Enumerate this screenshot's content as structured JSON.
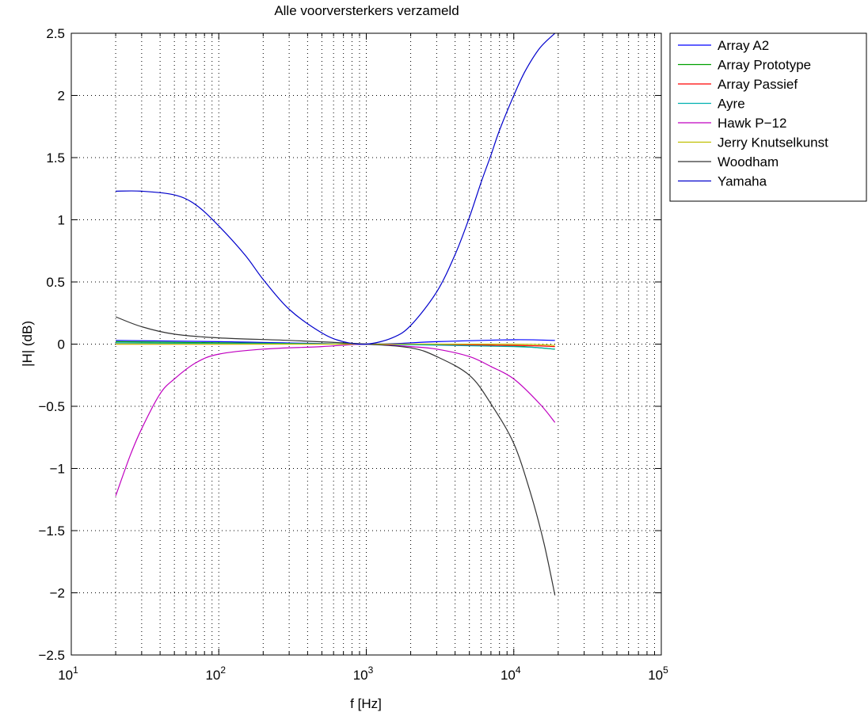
{
  "chart_data": {
    "type": "line",
    "title": "Alle voorversterkers verzameld",
    "xlabel": "f [Hz]",
    "ylabel": "|H| (dB)",
    "xscale": "log",
    "xlim": [
      10,
      100000
    ],
    "ylim": [
      -2.5,
      2.5
    ],
    "grid": true,
    "legend_position": "outside-right-top",
    "x_ticks": [
      {
        "base": "10",
        "exp": "1"
      },
      {
        "base": "10",
        "exp": "2"
      },
      {
        "base": "10",
        "exp": "3"
      },
      {
        "base": "10",
        "exp": "4"
      },
      {
        "base": "10",
        "exp": "5"
      }
    ],
    "y_ticks": [
      "2.5",
      "2",
      "1.5",
      "1",
      "0.5",
      "0",
      "−0.5",
      "−1",
      "−1.5",
      "−2",
      "−2.5"
    ],
    "series": [
      {
        "name": "Array A2",
        "color": "#0000ff",
        "points": [
          [
            20,
            0.03
          ],
          [
            100,
            0.02
          ],
          [
            1000,
            0.0
          ],
          [
            3000,
            0.02
          ],
          [
            10000,
            0.035
          ],
          [
            19000,
            0.03
          ]
        ]
      },
      {
        "name": "Array Prototype",
        "color": "#00a000",
        "points": [
          [
            20,
            0.02
          ],
          [
            100,
            0.01
          ],
          [
            1000,
            0.0
          ],
          [
            5000,
            -0.005
          ],
          [
            10000,
            -0.015
          ],
          [
            19000,
            -0.04
          ]
        ]
      },
      {
        "name": "Array Passief",
        "color": "#ff0000",
        "points": [
          [
            20,
            0.0
          ],
          [
            100,
            0.0
          ],
          [
            1000,
            0.0
          ],
          [
            10000,
            -0.01
          ],
          [
            19000,
            -0.02
          ]
        ]
      },
      {
        "name": "Ayre",
        "color": "#00b0b0",
        "points": [
          [
            20,
            0.01
          ],
          [
            100,
            0.005
          ],
          [
            1000,
            0.0
          ],
          [
            10000,
            -0.02
          ],
          [
            19000,
            -0.04
          ]
        ]
      },
      {
        "name": "Hawk P−12",
        "color": "#c000c0",
        "points": [
          [
            20,
            -1.22
          ],
          [
            25,
            -0.9
          ],
          [
            30,
            -0.68
          ],
          [
            40,
            -0.4
          ],
          [
            50,
            -0.28
          ],
          [
            70,
            -0.15
          ],
          [
            100,
            -0.08
          ],
          [
            200,
            -0.04
          ],
          [
            500,
            -0.02
          ],
          [
            1000,
            0.0
          ],
          [
            2000,
            -0.02
          ],
          [
            3000,
            -0.04
          ],
          [
            5000,
            -0.1
          ],
          [
            7000,
            -0.18
          ],
          [
            10000,
            -0.28
          ],
          [
            15000,
            -0.48
          ],
          [
            19000,
            -0.63
          ]
        ]
      },
      {
        "name": "Jerry Knutselkunst",
        "color": "#c0c000",
        "points": [
          [
            20,
            0.0
          ],
          [
            100,
            0.0
          ],
          [
            1000,
            0.0
          ],
          [
            10000,
            0.0
          ],
          [
            19000,
            -0.01
          ]
        ]
      },
      {
        "name": "Woodham",
        "color": "#333333",
        "points": [
          [
            20,
            0.22
          ],
          [
            30,
            0.14
          ],
          [
            50,
            0.08
          ],
          [
            100,
            0.05
          ],
          [
            300,
            0.03
          ],
          [
            1000,
            0.0
          ],
          [
            2000,
            -0.03
          ],
          [
            3000,
            -0.1
          ],
          [
            5000,
            -0.25
          ],
          [
            7000,
            -0.48
          ],
          [
            10000,
            -0.8
          ],
          [
            13000,
            -1.2
          ],
          [
            16000,
            -1.6
          ],
          [
            19000,
            -2.02
          ]
        ]
      },
      {
        "name": "Yamaha",
        "color": "#0000cc",
        "points": [
          [
            20,
            1.23
          ],
          [
            30,
            1.23
          ],
          [
            50,
            1.2
          ],
          [
            70,
            1.12
          ],
          [
            100,
            0.95
          ],
          [
            150,
            0.72
          ],
          [
            200,
            0.52
          ],
          [
            300,
            0.28
          ],
          [
            500,
            0.09
          ],
          [
            700,
            0.02
          ],
          [
            1000,
            0.0
          ],
          [
            1500,
            0.05
          ],
          [
            2000,
            0.15
          ],
          [
            3000,
            0.42
          ],
          [
            4000,
            0.72
          ],
          [
            5000,
            1.02
          ],
          [
            6000,
            1.3
          ],
          [
            7000,
            1.52
          ],
          [
            8000,
            1.72
          ],
          [
            10000,
            2.0
          ],
          [
            12000,
            2.2
          ],
          [
            15000,
            2.38
          ],
          [
            19000,
            2.5
          ]
        ]
      }
    ]
  }
}
